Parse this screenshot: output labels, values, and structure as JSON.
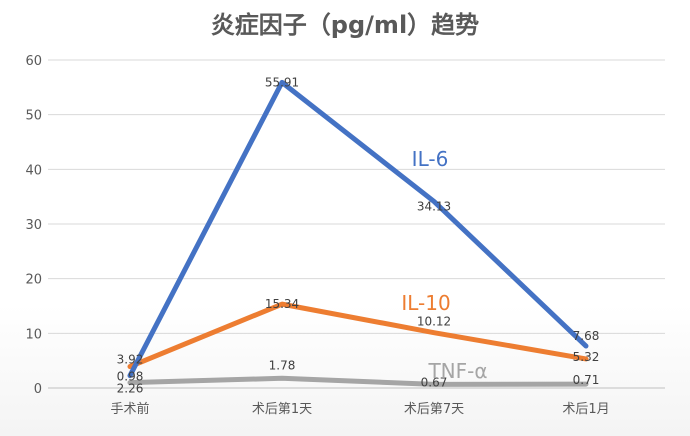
{
  "chart_data": {
    "type": "line",
    "title": "炎症因子（pg/ml）趋势",
    "categories": [
      "手术前",
      "术后第1天",
      "术后第7天",
      "术后1月"
    ],
    "ylim": [
      0,
      60
    ],
    "yticks": [
      "0",
      "10",
      "20",
      "30",
      "40",
      "50",
      "60"
    ],
    "grid": true,
    "series": [
      {
        "name": "IL-6",
        "color": "#4472c4",
        "values": [
          2.26,
          55.91,
          34.13,
          7.68
        ],
        "labels": [
          "2.26",
          "55.91",
          "34.13",
          "7.68"
        ]
      },
      {
        "name": "IL-10",
        "color": "#ed7d31",
        "values": [
          3.92,
          15.34,
          10.12,
          5.32
        ],
        "labels": [
          "3.92",
          "15.34",
          "10.12",
          "5.32"
        ]
      },
      {
        "name": "TNF-α",
        "color": "#a5a5a5",
        "values": [
          0.98,
          1.78,
          0.67,
          0.71
        ],
        "labels": [
          "0.98",
          "1.78",
          "0.67",
          "0.71"
        ]
      }
    ]
  }
}
